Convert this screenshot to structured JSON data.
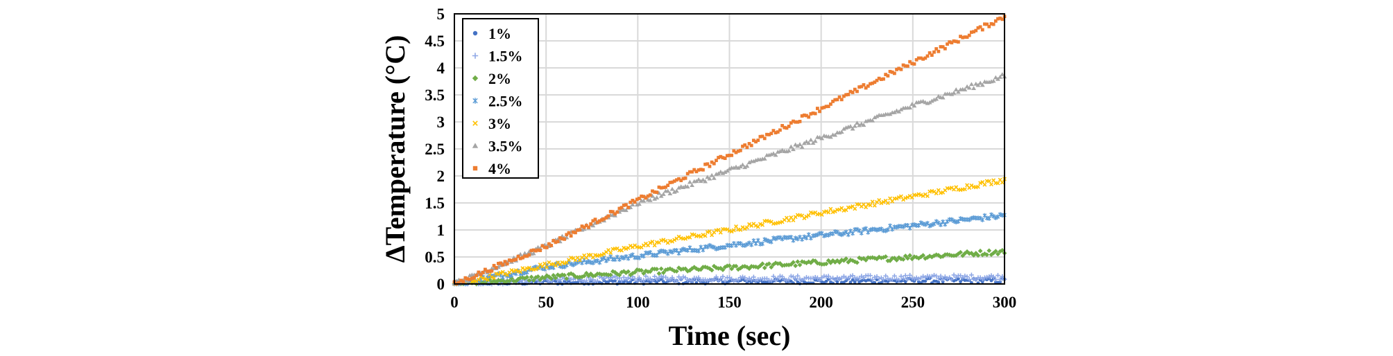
{
  "chart_data": {
    "type": "scatter",
    "title": "",
    "xlabel": "Time (sec)",
    "ylabel": "ΔTemperature (°C)",
    "xlim": [
      0,
      300
    ],
    "ylim": [
      0,
      5
    ],
    "x_ticks": [
      "0",
      "50",
      "100",
      "150",
      "200",
      "250",
      "300"
    ],
    "y_ticks": [
      "0",
      "0.5",
      "1",
      "1.5",
      "2",
      "2.5",
      "3",
      "3.5",
      "4",
      "4.5",
      "5"
    ],
    "grid": true,
    "legend_position": "top-left",
    "series": [
      {
        "name": "1%",
        "color": "#4472C4",
        "marker": "circle",
        "x": [
          0,
          50,
          100,
          150,
          200,
          250,
          300
        ],
        "y": [
          0,
          0.03,
          0.04,
          0.05,
          0.05,
          0.06,
          0.06
        ]
      },
      {
        "name": "1.5%",
        "color": "#8FA8E6",
        "marker": "plus",
        "x": [
          0,
          50,
          100,
          150,
          200,
          250,
          300
        ],
        "y": [
          0,
          0.08,
          0.1,
          0.1,
          0.11,
          0.12,
          0.13
        ]
      },
      {
        "name": "2%",
        "color": "#70AD47",
        "marker": "diamond",
        "x": [
          0,
          50,
          100,
          150,
          200,
          250,
          300
        ],
        "y": [
          0,
          0.12,
          0.22,
          0.3,
          0.4,
          0.5,
          0.6
        ]
      },
      {
        "name": "2.5%",
        "color": "#5B9BD5",
        "marker": "asterisk",
        "x": [
          0,
          50,
          100,
          150,
          200,
          250,
          300
        ],
        "y": [
          0,
          0.32,
          0.52,
          0.72,
          0.9,
          1.08,
          1.27
        ]
      },
      {
        "name": "3%",
        "color": "#FFC000",
        "marker": "x",
        "x": [
          0,
          50,
          100,
          150,
          200,
          250,
          300
        ],
        "y": [
          0,
          0.35,
          0.7,
          1.0,
          1.32,
          1.62,
          1.93
        ]
      },
      {
        "name": "3.5%",
        "color": "#A5A5A5",
        "marker": "triangle",
        "x": [
          0,
          50,
          100,
          150,
          200,
          250,
          300
        ],
        "y": [
          0,
          0.7,
          1.5,
          2.1,
          2.7,
          3.3,
          3.85
        ]
      },
      {
        "name": "4%",
        "color": "#ED7D31",
        "marker": "square",
        "x": [
          0,
          50,
          100,
          150,
          200,
          250,
          300
        ],
        "y": [
          0,
          0.7,
          1.55,
          2.4,
          3.25,
          4.1,
          4.95
        ]
      }
    ]
  }
}
